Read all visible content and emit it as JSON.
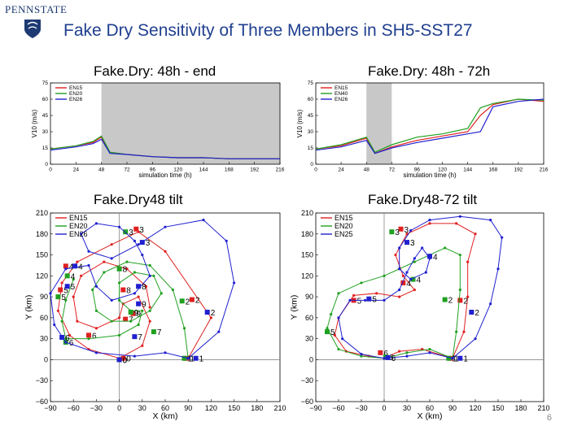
{
  "header": {
    "logo_text": "PENNSTATE",
    "title": "Fake Dry Sensitivity of Three Members in SH5-SST27",
    "page_number": "6"
  },
  "colors": {
    "red": "#e02020",
    "green": "#20a020",
    "blue": "#2020d0",
    "title": "#1f3f8f"
  },
  "chart_data": [
    {
      "type": "line",
      "panel_title": "Fake.Dry: 48h - end",
      "xlabel": "simulation time (h)",
      "ylabel": "V10 (m/s)",
      "xlim": [
        0,
        216
      ],
      "ylim": [
        0,
        75
      ],
      "xticks": [
        0,
        24,
        48,
        72,
        96,
        120,
        144,
        168,
        192,
        216
      ],
      "yticks": [
        0,
        15,
        30,
        45,
        60,
        75
      ],
      "shaded_span": [
        48,
        216
      ],
      "x": [
        0,
        24,
        40,
        48,
        56,
        72,
        96,
        120,
        144,
        168,
        192,
        216
      ],
      "series": [
        {
          "name": "EN15",
          "color": "#e02020",
          "values": [
            14,
            17,
            20,
            25,
            11,
            9,
            7,
            6,
            6,
            5,
            5,
            5
          ]
        },
        {
          "name": "EN20",
          "color": "#20a020",
          "values": [
            14,
            17,
            21,
            26,
            11,
            9,
            7,
            6,
            6,
            5,
            5,
            5
          ]
        },
        {
          "name": "EN26",
          "color": "#2020d0",
          "values": [
            13,
            16,
            19,
            23,
            10,
            9,
            7,
            6,
            6,
            5,
            5,
            5
          ]
        }
      ]
    },
    {
      "type": "line",
      "panel_title": "Fake.Dry: 48h - 72h",
      "xlabel": "simulation time (h)",
      "ylabel": "V10 (m/s)",
      "xlim": [
        0,
        216
      ],
      "ylim": [
        0,
        75
      ],
      "xticks": [
        0,
        24,
        48,
        72,
        96,
        120,
        144,
        168,
        192,
        216
      ],
      "yticks": [
        0,
        15,
        30,
        45,
        60,
        75
      ],
      "shaded_span": [
        48,
        72
      ],
      "x": [
        0,
        24,
        48,
        56,
        72,
        96,
        120,
        144,
        156,
        168,
        192,
        216
      ],
      "series": [
        {
          "name": "EN15",
          "color": "#e02020",
          "values": [
            14,
            17,
            24,
            10,
            16,
            22,
            26,
            30,
            45,
            55,
            60,
            58
          ]
        },
        {
          "name": "EN40",
          "color": "#20a020",
          "values": [
            14,
            18,
            25,
            11,
            18,
            25,
            28,
            33,
            52,
            56,
            60,
            59
          ]
        },
        {
          "name": "EN26",
          "color": "#2020d0",
          "values": [
            13,
            16,
            22,
            10,
            15,
            20,
            24,
            28,
            30,
            53,
            58,
            60
          ]
        }
      ]
    },
    {
      "type": "scatter",
      "panel_title": "Fake.Dry48   tilt",
      "xlabel": "X (km)",
      "ylabel": "Y (km)",
      "xlim": [
        -90,
        210
      ],
      "ylim": [
        -60,
        210
      ],
      "xticks": [
        -90,
        -60,
        -30,
        0,
        30,
        60,
        90,
        120,
        150,
        180,
        210
      ],
      "yticks": [
        -60,
        -30,
        0,
        30,
        60,
        90,
        120,
        150,
        180,
        210
      ],
      "series": [
        {
          "name": "EN15",
          "color": "#e02020",
          "points": [
            [
              90,
              2
            ],
            [
              120,
              60
            ],
            [
              60,
              155
            ],
            [
              25,
              183
            ],
            [
              -10,
              165
            ],
            [
              -55,
              140
            ],
            [
              -75,
              110
            ],
            [
              -80,
              70
            ],
            [
              -65,
              35
            ],
            [
              -40,
              15
            ],
            [
              0,
              2
            ],
            [
              30,
              20
            ],
            [
              40,
              55
            ],
            [
              25,
              90
            ],
            [
              5,
              80
            ],
            [
              0,
              60
            ],
            [
              -30,
              45
            ],
            [
              -55,
              55
            ],
            [
              -60,
              90
            ],
            [
              -50,
              120
            ],
            [
              -20,
              140
            ],
            [
              10,
              130
            ],
            [
              35,
              105
            ],
            [
              40,
              75
            ]
          ],
          "markers": [
            {
              "label": "0",
              "x": 5,
              "y": 2
            },
            {
              "label": "1",
              "x": 88,
              "y": 2
            },
            {
              "label": "2",
              "x": 95,
              "y": 86
            },
            {
              "label": "3",
              "x": 22,
              "y": 187
            },
            {
              "label": "4",
              "x": -70,
              "y": 134
            },
            {
              "label": "5",
              "x": -77,
              "y": 100
            },
            {
              "label": "6",
              "x": -40,
              "y": 35
            },
            {
              "label": "7",
              "x": 8,
              "y": 58
            },
            {
              "label": "8",
              "x": 5,
              "y": 100
            },
            {
              "label": "9",
              "x": 18,
              "y": 66
            }
          ]
        },
        {
          "name": "EN20",
          "color": "#20a020",
          "points": [
            [
              90,
              2
            ],
            [
              85,
              45
            ],
            [
              70,
              100
            ],
            [
              40,
              135
            ],
            [
              10,
              140
            ],
            [
              -20,
              125
            ],
            [
              -35,
              100
            ],
            [
              -30,
              70
            ],
            [
              -10,
              55
            ],
            [
              15,
              55
            ],
            [
              40,
              70
            ],
            [
              55,
              95
            ],
            [
              45,
              120
            ],
            [
              20,
              125
            ],
            [
              0,
              110
            ],
            [
              0,
              85
            ],
            [
              15,
              70
            ],
            [
              30,
              70
            ],
            [
              25,
              50
            ],
            [
              0,
              35
            ],
            [
              -40,
              30
            ],
            [
              -70,
              30
            ],
            [
              -75,
              55
            ],
            [
              -70,
              85
            ],
            [
              -60,
              115
            ]
          ],
          "markers": [
            {
              "label": "0",
              "x": 0,
              "y": 0
            },
            {
              "label": "1",
              "x": 85,
              "y": 2
            },
            {
              "label": "2",
              "x": 82,
              "y": 84
            },
            {
              "label": "3",
              "x": 8,
              "y": 183
            },
            {
              "label": "4",
              "x": -68,
              "y": 120
            },
            {
              "label": "5",
              "x": -80,
              "y": 90
            },
            {
              "label": "6",
              "x": -70,
              "y": 25
            },
            {
              "label": "7",
              "x": 45,
              "y": 40
            },
            {
              "label": "8",
              "x": 0,
              "y": 130
            },
            {
              "label": "9",
              "x": 15,
              "y": 68
            }
          ]
        },
        {
          "name": "EN26",
          "color": "#2020d0",
          "points": [
            [
              90,
              2
            ],
            [
              130,
              40
            ],
            [
              150,
              110
            ],
            [
              140,
              170
            ],
            [
              110,
              200
            ],
            [
              60,
              190
            ],
            [
              25,
              165
            ],
            [
              -10,
              145
            ],
            [
              -40,
              155
            ],
            [
              -50,
              180
            ],
            [
              -30,
              195
            ],
            [
              0,
              190
            ],
            [
              20,
              170
            ],
            [
              30,
              150
            ],
            [
              40,
              120
            ],
            [
              20,
              95
            ],
            [
              -10,
              85
            ],
            [
              -30,
              105
            ],
            [
              -40,
              135
            ],
            [
              -70,
              130
            ],
            [
              -90,
              95
            ],
            [
              -85,
              50
            ],
            [
              -70,
              25
            ],
            [
              -30,
              10
            ],
            [
              20,
              5
            ],
            [
              60,
              10
            ],
            [
              90,
              2
            ]
          ],
          "markers": [
            {
              "label": "0",
              "x": 0,
              "y": 0
            },
            {
              "label": "1",
              "x": 100,
              "y": 2
            },
            {
              "label": "2",
              "x": 115,
              "y": 68
            },
            {
              "label": "3",
              "x": 30,
              "y": 168
            },
            {
              "label": "4",
              "x": -58,
              "y": 134
            },
            {
              "label": "5",
              "x": -68,
              "y": 105
            },
            {
              "label": "6",
              "x": -75,
              "y": 32
            },
            {
              "label": "7",
              "x": 20,
              "y": 33
            },
            {
              "label": "8",
              "x": 25,
              "y": 105
            },
            {
              "label": "9",
              "x": 25,
              "y": 80
            }
          ]
        }
      ]
    },
    {
      "type": "scatter",
      "panel_title": "Fake.Dry48-72   tilt",
      "xlabel": "X (km)",
      "ylabel": "Y (km)",
      "xlim": [
        -90,
        210
      ],
      "ylim": [
        -60,
        210
      ],
      "xticks": [
        -90,
        -60,
        -30,
        0,
        30,
        60,
        90,
        120,
        150,
        180,
        210
      ],
      "yticks": [
        -60,
        -30,
        0,
        30,
        60,
        90,
        120,
        150,
        180,
        210
      ],
      "series": [
        {
          "name": "EN15",
          "color": "#e02020",
          "points": [
            [
              90,
              2
            ],
            [
              105,
              40
            ],
            [
              110,
              90
            ],
            [
              110,
              140
            ],
            [
              120,
              180
            ],
            [
              95,
              195
            ],
            [
              60,
              195
            ],
            [
              30,
              180
            ],
            [
              15,
              150
            ],
            [
              25,
              120
            ],
            [
              40,
              100
            ],
            [
              20,
              90
            ],
            [
              -10,
              95
            ],
            [
              -40,
              92
            ],
            [
              -60,
              60
            ],
            [
              -65,
              35
            ],
            [
              -50,
              12
            ],
            [
              -20,
              5
            ],
            [
              0,
              2
            ],
            [
              20,
              12
            ],
            [
              50,
              15
            ],
            [
              90,
              2
            ]
          ],
          "markers": [
            {
              "label": "1",
              "x": 88,
              "y": 2
            },
            {
              "label": "2",
              "x": 100,
              "y": 85
            },
            {
              "label": "3",
              "x": 22,
              "y": 187
            },
            {
              "label": "4",
              "x": 25,
              "y": 110
            },
            {
              "label": "5",
              "x": -40,
              "y": 85
            },
            {
              "label": "6",
              "x": -5,
              "y": 10
            }
          ]
        },
        {
          "name": "EN20",
          "color": "#20a020",
          "points": [
            [
              90,
              2
            ],
            [
              95,
              40
            ],
            [
              100,
              100
            ],
            [
              100,
              150
            ],
            [
              80,
              160
            ],
            [
              60,
              150
            ],
            [
              40,
              140
            ],
            [
              20,
              130
            ],
            [
              0,
              120
            ],
            [
              -30,
              110
            ],
            [
              -60,
              95
            ],
            [
              -70,
              65
            ],
            [
              -75,
              45
            ],
            [
              -60,
              15
            ],
            [
              -30,
              5
            ],
            [
              0,
              2
            ],
            [
              30,
              10
            ],
            [
              60,
              15
            ],
            [
              90,
              2
            ]
          ],
          "markers": [
            {
              "label": "1",
              "x": 85,
              "y": 2
            },
            {
              "label": "2",
              "x": 80,
              "y": 86
            },
            {
              "label": "3",
              "x": 10,
              "y": 183
            },
            {
              "label": "4",
              "x": 38,
              "y": 115
            },
            {
              "label": "5",
              "x": -75,
              "y": 40
            },
            {
              "label": "6",
              "x": 2,
              "y": 4
            }
          ]
        },
        {
          "name": "EN25",
          "color": "#2020d0",
          "points": [
            [
              90,
              2
            ],
            [
              120,
              30
            ],
            [
              140,
              80
            ],
            [
              150,
              130
            ],
            [
              155,
              175
            ],
            [
              140,
              200
            ],
            [
              100,
              205
            ],
            [
              60,
              200
            ],
            [
              35,
              185
            ],
            [
              20,
              160
            ],
            [
              20,
              130
            ],
            [
              35,
              115
            ],
            [
              55,
              125
            ],
            [
              60,
              145
            ],
            [
              50,
              160
            ],
            [
              40,
              145
            ],
            [
              30,
              125
            ],
            [
              20,
              100
            ],
            [
              0,
              85
            ],
            [
              -25,
              85
            ],
            [
              -45,
              85
            ],
            [
              -60,
              60
            ],
            [
              -55,
              30
            ],
            [
              -30,
              8
            ],
            [
              0,
              2
            ],
            [
              30,
              5
            ],
            [
              60,
              10
            ],
            [
              90,
              2
            ]
          ],
          "markers": [
            {
              "label": "1",
              "x": 100,
              "y": 2
            },
            {
              "label": "2",
              "x": 115,
              "y": 68
            },
            {
              "label": "3",
              "x": 30,
              "y": 168
            },
            {
              "label": "4",
              "x": 60,
              "y": 148
            },
            {
              "label": "5",
              "x": -20,
              "y": 87
            },
            {
              "label": "6",
              "x": 5,
              "y": 3
            }
          ]
        }
      ]
    }
  ]
}
